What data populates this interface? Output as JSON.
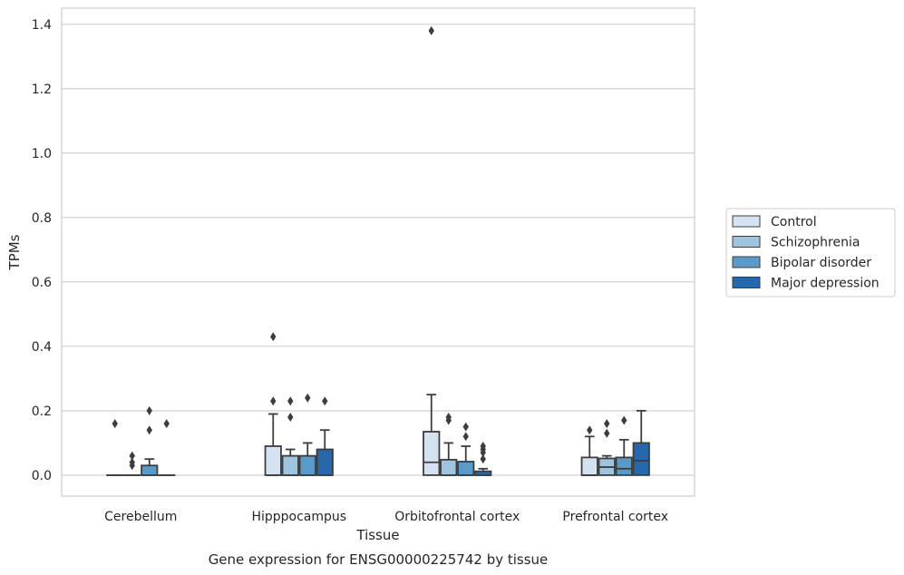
{
  "chart_data": {
    "type": "box",
    "xlabel": "Tissue",
    "ylabel": "TPMs",
    "caption": "Gene expression for ENSG00000225742 by tissue",
    "ylim": [
      -0.065,
      1.45
    ],
    "yticks": [
      "0.0",
      "0.2",
      "0.4",
      "0.6",
      "0.8",
      "1.0",
      "1.2",
      "1.4"
    ],
    "ytick_values": [
      0,
      0.2,
      0.4,
      0.6,
      0.8,
      1.0,
      1.2,
      1.4
    ],
    "grid": "horizontal",
    "legend_position": "right",
    "categories": [
      "Cerebellum",
      "Hipppocampus",
      "Orbitofrontal cortex",
      "Prefrontal cortex"
    ],
    "series": [
      {
        "name": "Control",
        "color": "#d4e2f1",
        "boxes": [
          {
            "q1": 0,
            "median": 0,
            "q3": 0,
            "whislo": 0,
            "whishi": 0,
            "fliers": [
              0.16
            ]
          },
          {
            "q1": 0,
            "median": 0,
            "q3": 0.09,
            "whislo": 0,
            "whishi": 0.19,
            "fliers": [
              0.23,
              0.43
            ]
          },
          {
            "q1": 0,
            "median": 0.04,
            "q3": 0.135,
            "whislo": 0,
            "whishi": 0.25,
            "fliers": [
              1.38
            ]
          },
          {
            "q1": 0,
            "median": 0,
            "q3": 0.055,
            "whislo": 0,
            "whishi": 0.12,
            "fliers": [
              0.14
            ]
          }
        ]
      },
      {
        "name": "Schizophrenia",
        "color": "#9fc4de",
        "boxes": [
          {
            "q1": 0,
            "median": 0,
            "q3": 0,
            "whislo": 0,
            "whishi": 0,
            "fliers": [
              0.03,
              0.04,
              0.06
            ]
          },
          {
            "q1": 0,
            "median": 0,
            "q3": 0.06,
            "whislo": 0,
            "whishi": 0.08,
            "fliers": [
              0.18,
              0.23
            ]
          },
          {
            "q1": 0,
            "median": 0,
            "q3": 0.048,
            "whislo": 0,
            "whishi": 0.1,
            "fliers": [
              0.17,
              0.18
            ]
          },
          {
            "q1": 0,
            "median": 0.025,
            "q3": 0.052,
            "whislo": 0,
            "whishi": 0.06,
            "fliers": [
              0.13,
              0.16
            ]
          }
        ]
      },
      {
        "name": "Bipolar disorder",
        "color": "#5a9ac8",
        "boxes": [
          {
            "q1": 0,
            "median": 0,
            "q3": 0.03,
            "whislo": 0,
            "whishi": 0.05,
            "fliers": [
              0.14,
              0.2
            ]
          },
          {
            "q1": 0,
            "median": 0,
            "q3": 0.06,
            "whislo": 0,
            "whishi": 0.1,
            "fliers": [
              0.24
            ]
          },
          {
            "q1": 0,
            "median": 0,
            "q3": 0.042,
            "whislo": 0,
            "whishi": 0.09,
            "fliers": [
              0.12,
              0.15
            ]
          },
          {
            "q1": 0,
            "median": 0.02,
            "q3": 0.055,
            "whislo": 0,
            "whishi": 0.11,
            "fliers": [
              0.17
            ]
          }
        ]
      },
      {
        "name": "Major depression",
        "color": "#2668ab",
        "boxes": [
          {
            "q1": 0,
            "median": 0,
            "q3": 0,
            "whislo": 0,
            "whishi": 0,
            "fliers": [
              0.16
            ]
          },
          {
            "q1": 0,
            "median": 0,
            "q3": 0.08,
            "whislo": 0,
            "whishi": 0.14,
            "fliers": [
              0.23
            ]
          },
          {
            "q1": 0,
            "median": 0,
            "q3": 0.012,
            "whislo": 0,
            "whishi": 0.02,
            "fliers": [
              0.05,
              0.07,
              0.08,
              0.09
            ]
          },
          {
            "q1": 0,
            "median": 0.045,
            "q3": 0.1,
            "whislo": 0,
            "whishi": 0.2,
            "fliers": []
          }
        ]
      }
    ]
  }
}
